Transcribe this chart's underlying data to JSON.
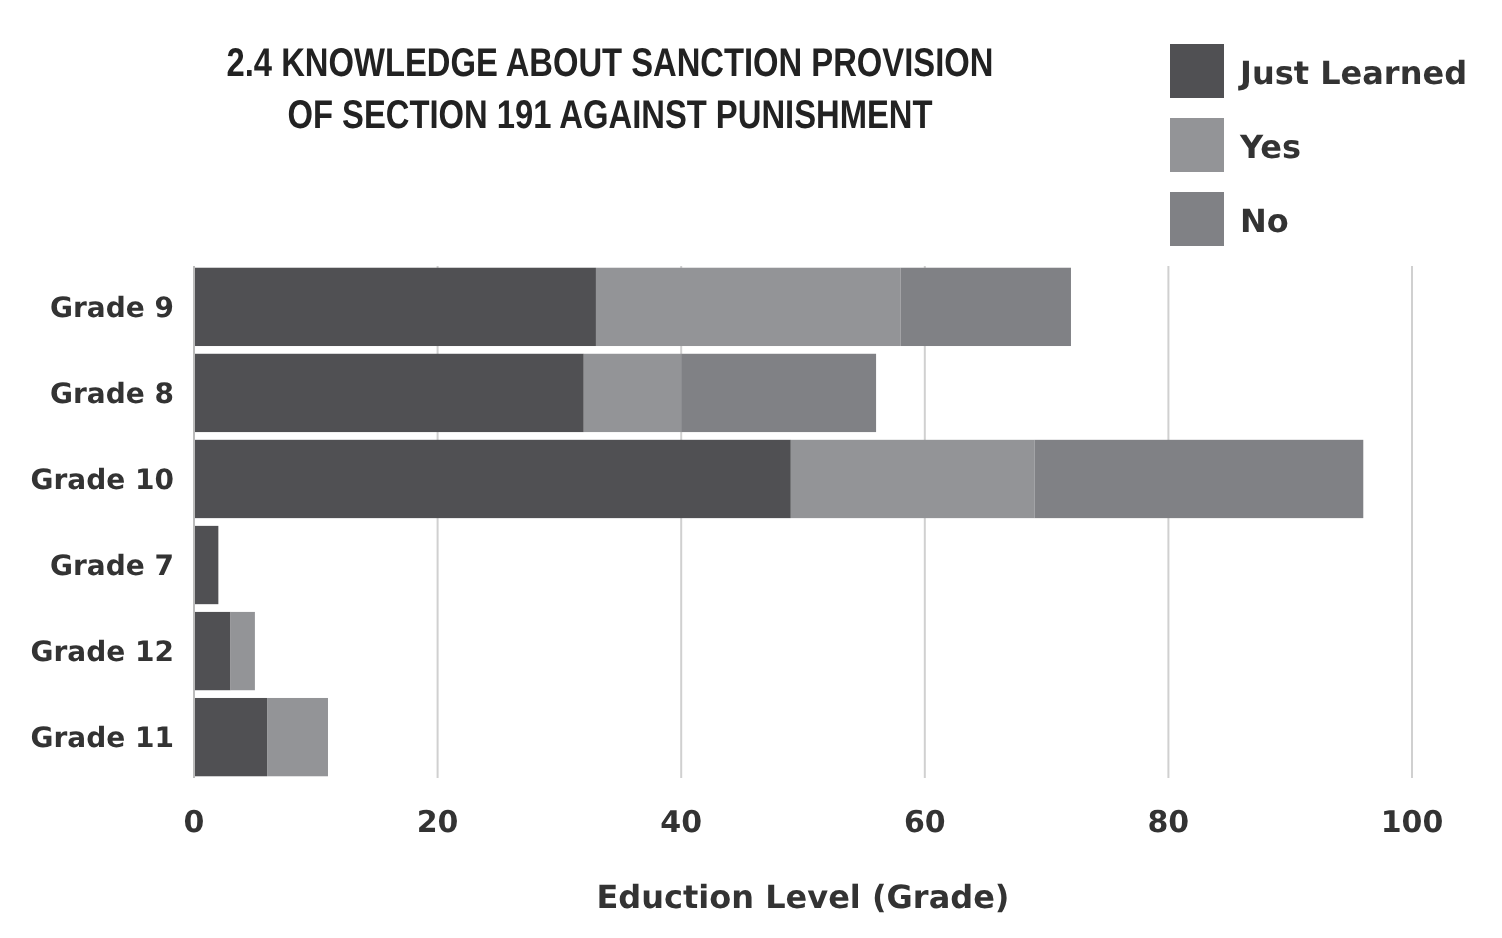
{
  "chart_data": {
    "type": "bar",
    "orientation": "horizontal",
    "stacked": true,
    "title": "2.4 KNOWLEDGE ABOUT SANCTION PROVISION OF SECTION 191 AGAINST PUNISHMENT",
    "xlabel": "Eduction Level (Grade)",
    "categories": [
      "Grade 9",
      "Grade 8",
      "Grade 10",
      "Grade 7",
      "Grade 12",
      "Grade 11"
    ],
    "series": [
      {
        "name": "Just Learned",
        "color": "#505053",
        "values": [
          33,
          32,
          49,
          2,
          3,
          6
        ]
      },
      {
        "name": "Yes",
        "color": "#939497",
        "values": [
          25,
          8,
          20,
          0,
          2,
          5
        ]
      },
      {
        "name": "No",
        "color": "#808185",
        "values": [
          14,
          16,
          27,
          0,
          0,
          0
        ]
      }
    ],
    "xlim": [
      0,
      100
    ],
    "xticks": [
      0,
      20,
      40,
      60,
      80,
      100
    ],
    "grid": "x",
    "legend": "top right"
  }
}
